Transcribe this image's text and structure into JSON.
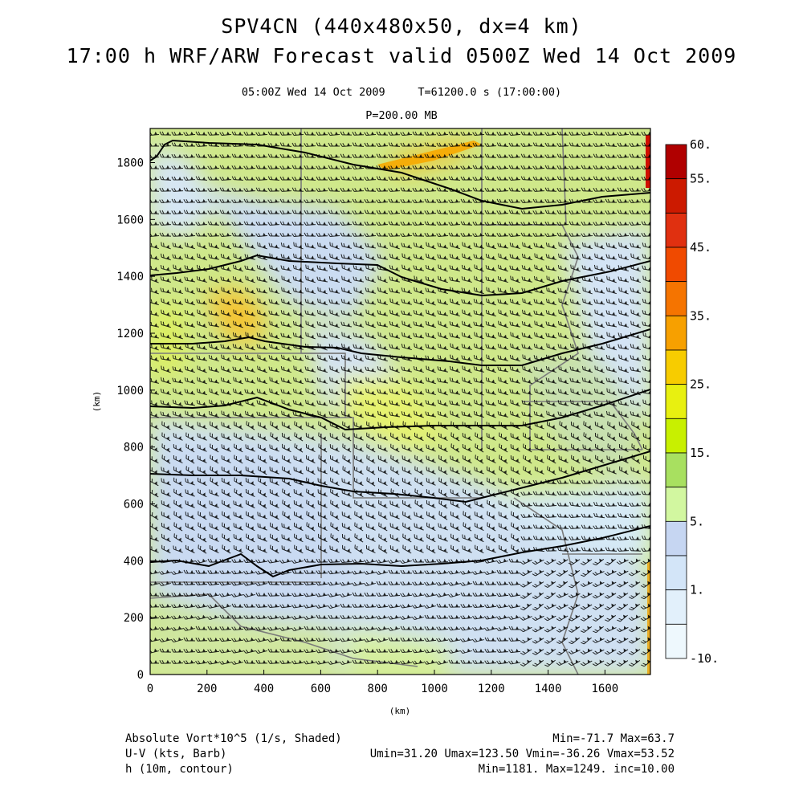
{
  "header": {
    "title": "SPV4CN (440x480x50, dx=4 km)",
    "subtitle": "17:00 h WRF/ARW Forecast valid 0500Z Wed 14 Oct 2009",
    "valid_time": "05:00Z Wed 14 Oct 2009",
    "sim_time": "T=61200.0 s (17:00:00)",
    "level": "P=200.00 MB"
  },
  "axes": {
    "x_label": "(km)",
    "y_label": "(km)",
    "x_ticks": [
      "0",
      "200",
      "400",
      "600",
      "800",
      "1000",
      "1200",
      "1400",
      "1600"
    ],
    "y_ticks": [
      "0",
      "200",
      "400",
      "600",
      "800",
      "1000",
      "1200",
      "1400",
      "1600",
      "1800"
    ],
    "x_range_km": [
      0,
      1760
    ],
    "y_range_km": [
      0,
      1920
    ]
  },
  "colorbar": {
    "labels": [
      "60.",
      "55.",
      "45.",
      "35.",
      "25.",
      "15.",
      "5.",
      "1.",
      "-10."
    ],
    "colors": [
      "#b00000",
      "#cc1a00",
      "#e03010",
      "#f04a00",
      "#f57400",
      "#f7a000",
      "#f7cc00",
      "#e8f010",
      "#c8f000",
      "#a8e060",
      "#d2f7a0",
      "#c6d6f2",
      "#d3e5f8",
      "#e2f0fb",
      "#eef8fd"
    ]
  },
  "contours": {
    "levels_m": [
      1190,
      1200,
      1210,
      1220,
      1230,
      1240
    ],
    "color": "#000000"
  },
  "footer": {
    "field1": "Absolute Vort*10^5 (1/s, Shaded)",
    "field1_stats": "Min=-71.7 Max=63.7",
    "field2": "U-V (kts, Barb)",
    "field2_stats": "Umin=31.20 Umax=123.50 Vmin=-36.26 Vmax=53.52",
    "field3": "h (10m, contour)",
    "field3_stats": "Min=1181. Max=1249. inc=10.00"
  }
}
